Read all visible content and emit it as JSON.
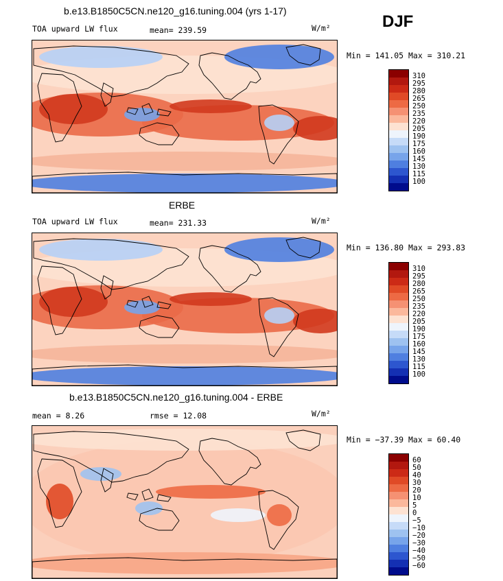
{
  "season": "DJF",
  "units_label": "W/m²",
  "chart_data": [
    {
      "type": "heatmap",
      "title": "b.e13.B1850C5CN.ne120_g16.tuning.004 (yrs 1-17)",
      "variable": "TOA upward LW flux",
      "stat_text": "mean= 239.59",
      "mean": 239.59,
      "min": 141.05,
      "max": 310.21,
      "minmax_text": "Min = 141.05 Max = 310.21",
      "colorbar_levels": [
        "310",
        "295",
        "280",
        "265",
        "250",
        "235",
        "220",
        "205",
        "190",
        "175",
        "160",
        "145",
        "130",
        "115",
        "100"
      ],
      "colorbar_colors": [
        "#8b0000",
        "#b2180f",
        "#cc2a16",
        "#e04a26",
        "#ed6a44",
        "#f59173",
        "#fbb89c",
        "#fde2d2",
        "#eef4fc",
        "#c6dbf8",
        "#9ec2f0",
        "#77a4ea",
        "#4f7fe0",
        "#2d56cf",
        "#1430b3",
        "#000c8c"
      ],
      "map_style": "full"
    },
    {
      "type": "heatmap",
      "title": "ERBE",
      "variable": "TOA upward LW flux",
      "stat_text": "mean= 231.33",
      "mean": 231.33,
      "min": 136.8,
      "max": 293.83,
      "minmax_text": "Min = 136.80 Max = 293.83",
      "colorbar_levels": [
        "310",
        "295",
        "280",
        "265",
        "250",
        "235",
        "220",
        "205",
        "190",
        "175",
        "160",
        "145",
        "130",
        "115",
        "100"
      ],
      "colorbar_colors": [
        "#8b0000",
        "#b2180f",
        "#cc2a16",
        "#e04a26",
        "#ed6a44",
        "#f59173",
        "#fbb89c",
        "#fde2d2",
        "#eef4fc",
        "#c6dbf8",
        "#9ec2f0",
        "#77a4ea",
        "#4f7fe0",
        "#2d56cf",
        "#1430b3",
        "#000c8c"
      ],
      "map_style": "full"
    },
    {
      "type": "heatmap",
      "title": "b.e13.B1850C5CN.ne120_g16.tuning.004 - ERBE",
      "stat_text": "mean =   8.26",
      "mean": 8.26,
      "rmse_text": "rmse =  12.08",
      "rmse": 12.08,
      "min": -37.39,
      "max": 60.4,
      "minmax_text": "Min = −37.39 Max =  60.40",
      "colorbar_levels": [
        "60",
        "50",
        "40",
        "30",
        "20",
        "10",
        "5",
        "0",
        "−5",
        "−10",
        "−20",
        "−30",
        "−40",
        "−50",
        "−60"
      ],
      "colorbar_colors": [
        "#8b0000",
        "#b2180f",
        "#cc2a16",
        "#e04a26",
        "#ed6a44",
        "#f59173",
        "#fbb89c",
        "#fde2d2",
        "#eef4fc",
        "#c6dbf8",
        "#9ec2f0",
        "#77a4ea",
        "#4f7fe0",
        "#2d56cf",
        "#1430b3",
        "#000c8c"
      ],
      "map_style": "diff"
    }
  ]
}
